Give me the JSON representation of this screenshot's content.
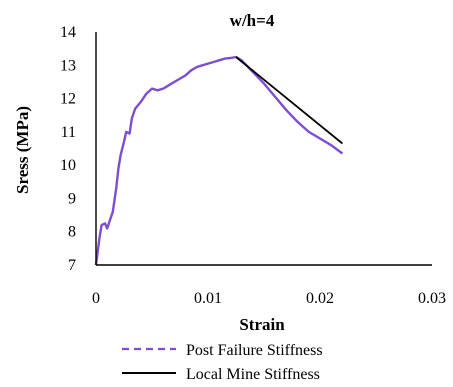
{
  "chart_data": {
    "type": "line",
    "title": "w/h=4",
    "xlabel": "Strain",
    "ylabel": "Sress (MPa)",
    "xlim": [
      0,
      0.03
    ],
    "ylim": [
      7,
      14
    ],
    "xticks": [
      0,
      0.01,
      0.02,
      0.03
    ],
    "xtick_labels": [
      "0",
      "0.01",
      "0.02",
      "0.03"
    ],
    "yticks": [
      7,
      8,
      9,
      10,
      11,
      12,
      13,
      14
    ],
    "ytick_labels": [
      "7",
      "8",
      "9",
      "10",
      "11",
      "12",
      "13",
      "14"
    ],
    "grid": false,
    "legend_position": "bottom",
    "series": [
      {
        "name": "Post Failure Stiffness",
        "color": "#7b4fd0",
        "style": "dashed",
        "x": [
          0,
          0.0003,
          0.0005,
          0.0008,
          0.001,
          0.0012,
          0.0015,
          0.0018,
          0.002,
          0.0022,
          0.0025,
          0.0027,
          0.003,
          0.0032,
          0.0035,
          0.004,
          0.0045,
          0.005,
          0.0055,
          0.006,
          0.0065,
          0.007,
          0.0075,
          0.008,
          0.0085,
          0.009,
          0.0095,
          0.01,
          0.0105,
          0.011,
          0.0115,
          0.012,
          0.0125,
          0.013,
          0.014,
          0.015,
          0.016,
          0.017,
          0.018,
          0.019,
          0.02,
          0.021,
          0.022
        ],
        "y": [
          7,
          7.8,
          8.2,
          8.25,
          8.1,
          8.3,
          8.6,
          9.3,
          9.9,
          10.3,
          10.7,
          11,
          10.95,
          11.4,
          11.7,
          11.9,
          12.15,
          12.3,
          12.25,
          12.3,
          12.4,
          12.5,
          12.6,
          12.7,
          12.85,
          12.95,
          13.0,
          13.05,
          13.1,
          13.15,
          13.2,
          13.22,
          13.25,
          13.15,
          12.8,
          12.45,
          12.05,
          11.65,
          11.3,
          11.0,
          10.8,
          10.6,
          10.35
        ]
      },
      {
        "name": "Local Mine Stiffness",
        "color": "#000000",
        "style": "solid",
        "x": [
          0.0125,
          0.022
        ],
        "y": [
          13.25,
          10.65
        ]
      }
    ]
  }
}
